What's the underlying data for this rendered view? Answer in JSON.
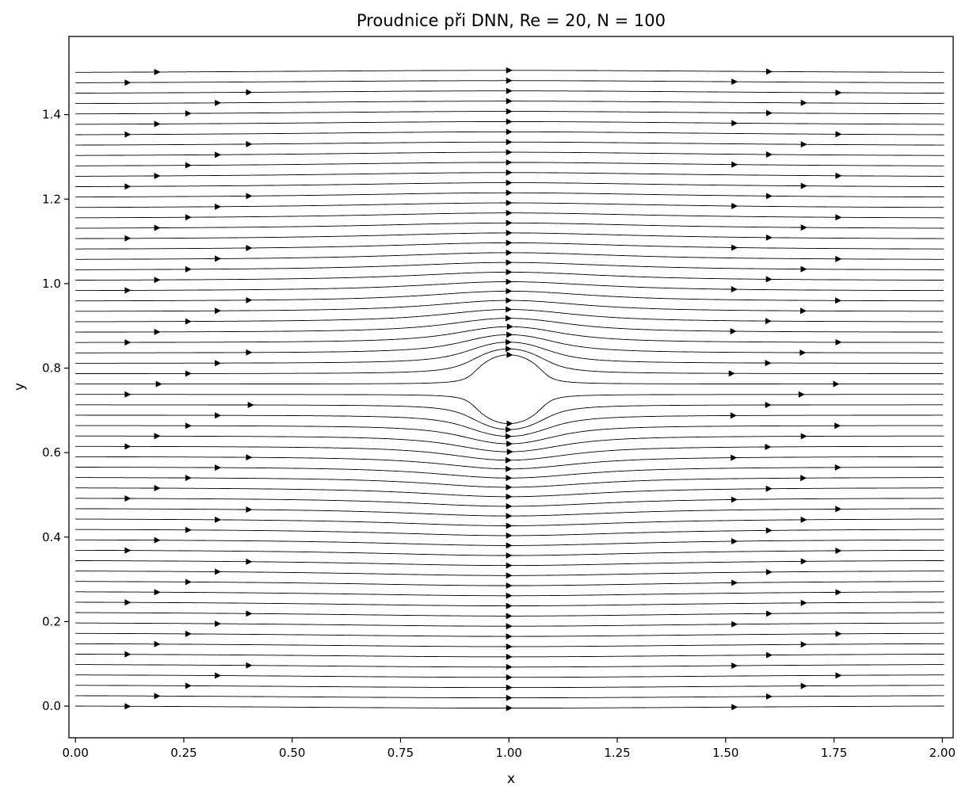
{
  "chart_data": {
    "type": "streamplot",
    "title": "Proudnice při DNN, Re = 20, N = 100",
    "xlabel": "x",
    "ylabel": "y",
    "xlim": [
      -0.015,
      2.025
    ],
    "ylim": [
      -0.075,
      1.585
    ],
    "x_ticks": [
      0.0,
      0.25,
      0.5,
      0.75,
      1.0,
      1.25,
      1.5,
      1.75,
      2.0
    ],
    "x_tick_labels": [
      "0.00",
      "0.25",
      "0.50",
      "0.75",
      "1.00",
      "1.25",
      "1.50",
      "1.75",
      "2.00"
    ],
    "y_ticks": [
      0.0,
      0.2,
      0.4,
      0.6,
      0.8,
      1.0,
      1.2,
      1.4
    ],
    "y_tick_labels": [
      "0.0",
      "0.2",
      "0.4",
      "0.6",
      "0.8",
      "1.0",
      "1.2",
      "1.4"
    ],
    "domain": {
      "x": [
        0.0,
        2.0
      ],
      "y": [
        0.0,
        1.5
      ]
    },
    "obstacle": {
      "shape": "circle",
      "center": [
        1.0,
        0.75
      ],
      "radius": 0.075
    },
    "flow": {
      "direction": "left-to-right",
      "inflow_velocity": 1.0
    },
    "grid": false,
    "line_color": "#000000"
  }
}
